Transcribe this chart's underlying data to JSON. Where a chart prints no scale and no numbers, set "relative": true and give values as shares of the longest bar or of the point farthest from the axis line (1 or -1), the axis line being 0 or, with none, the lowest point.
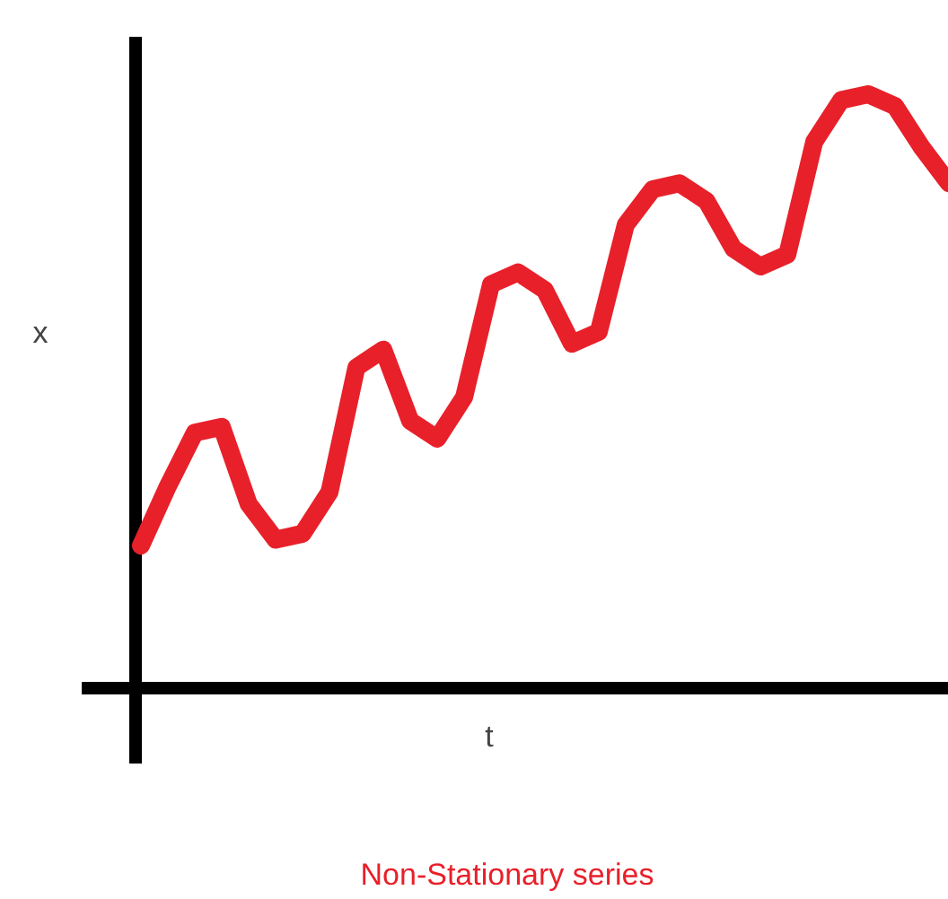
{
  "chart_data": {
    "type": "line",
    "title": "Non-Stationary series",
    "xlabel": "t",
    "ylabel": "x",
    "relative": true,
    "color": "#e8202a",
    "categories": [
      null,
      null,
      null,
      null,
      null,
      null,
      null,
      null,
      null,
      null,
      null,
      null,
      null,
      null,
      null,
      null,
      null,
      null,
      null,
      null,
      null,
      null,
      null,
      null,
      null,
      null,
      null,
      null,
      null,
      null,
      null
    ],
    "values": [
      0.24,
      0.34,
      0.43,
      0.44,
      0.31,
      0.25,
      0.26,
      0.33,
      0.54,
      0.57,
      0.45,
      0.42,
      0.49,
      0.68,
      0.7,
      0.67,
      0.58,
      0.6,
      0.78,
      0.84,
      0.85,
      0.82,
      0.74,
      0.71,
      0.73,
      0.92,
      0.99,
      1,
      0.98,
      0.91,
      0.85
    ]
  }
}
